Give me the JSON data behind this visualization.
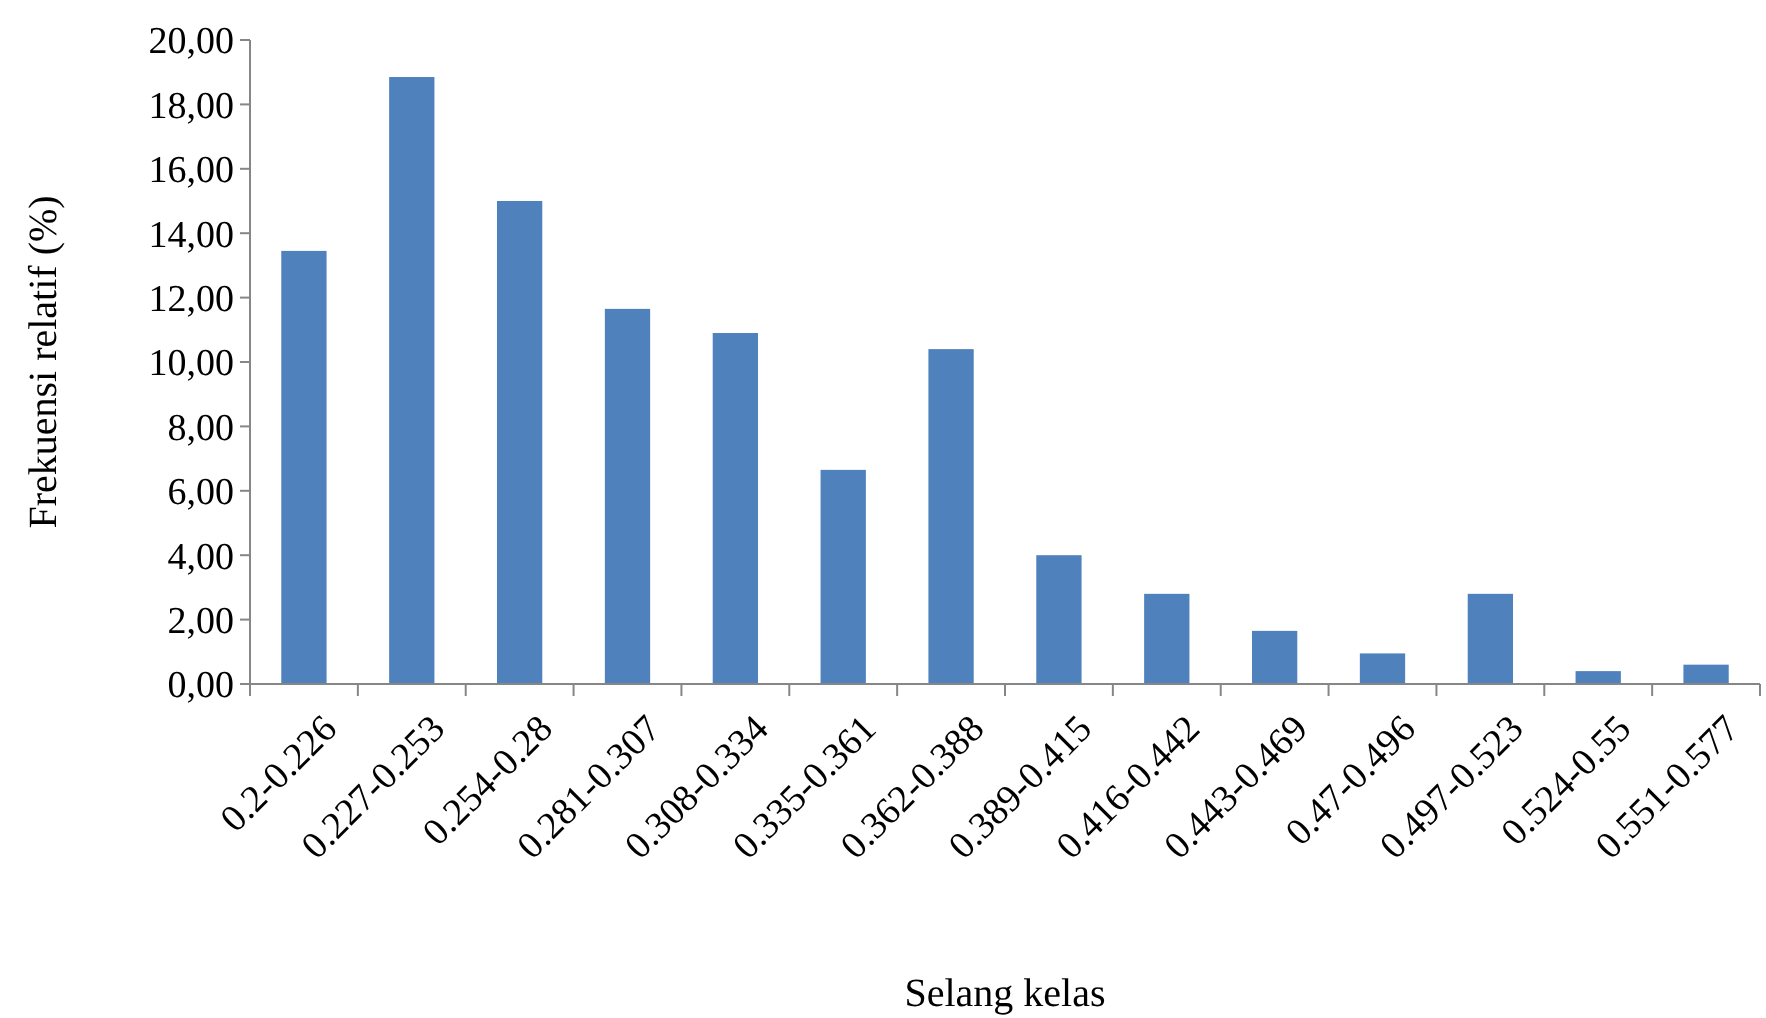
{
  "chart_data": {
    "type": "bar",
    "xlabel": "Selang kelas",
    "ylabel": "Frekuensi relatif (%)",
    "categories": [
      "0.2-0.226",
      "0.227-0.253",
      "0.254-0.28",
      "0.281-0.307",
      "0.308-0.334",
      "0.335-0.361",
      "0.362-0.388",
      "0.389-0.415",
      "0.416-0.442",
      "0.443-0.469",
      "0.47-0.496",
      "0.497-0.523",
      "0.524-0.55",
      "0.551-0.577"
    ],
    "values": [
      13.45,
      18.85,
      15.0,
      11.65,
      10.9,
      6.65,
      10.4,
      4.0,
      2.8,
      1.65,
      0.95,
      2.8,
      0.4,
      0.6
    ],
    "color": "#4f81bd",
    "ylim": [
      0,
      20
    ],
    "yticks": [
      {
        "value": 0,
        "label": "0,00"
      },
      {
        "value": 2,
        "label": "2,00"
      },
      {
        "value": 4,
        "label": "4,00"
      },
      {
        "value": 6,
        "label": "6,00"
      },
      {
        "value": 8,
        "label": "8,00"
      },
      {
        "value": 10,
        "label": "10,00"
      },
      {
        "value": 12,
        "label": "12,00"
      },
      {
        "value": 14,
        "label": "14,00"
      },
      {
        "value": 16,
        "label": "16,00"
      },
      {
        "value": 18,
        "label": "18,00"
      },
      {
        "value": 20,
        "label": "20,00"
      }
    ],
    "grid": false
  }
}
